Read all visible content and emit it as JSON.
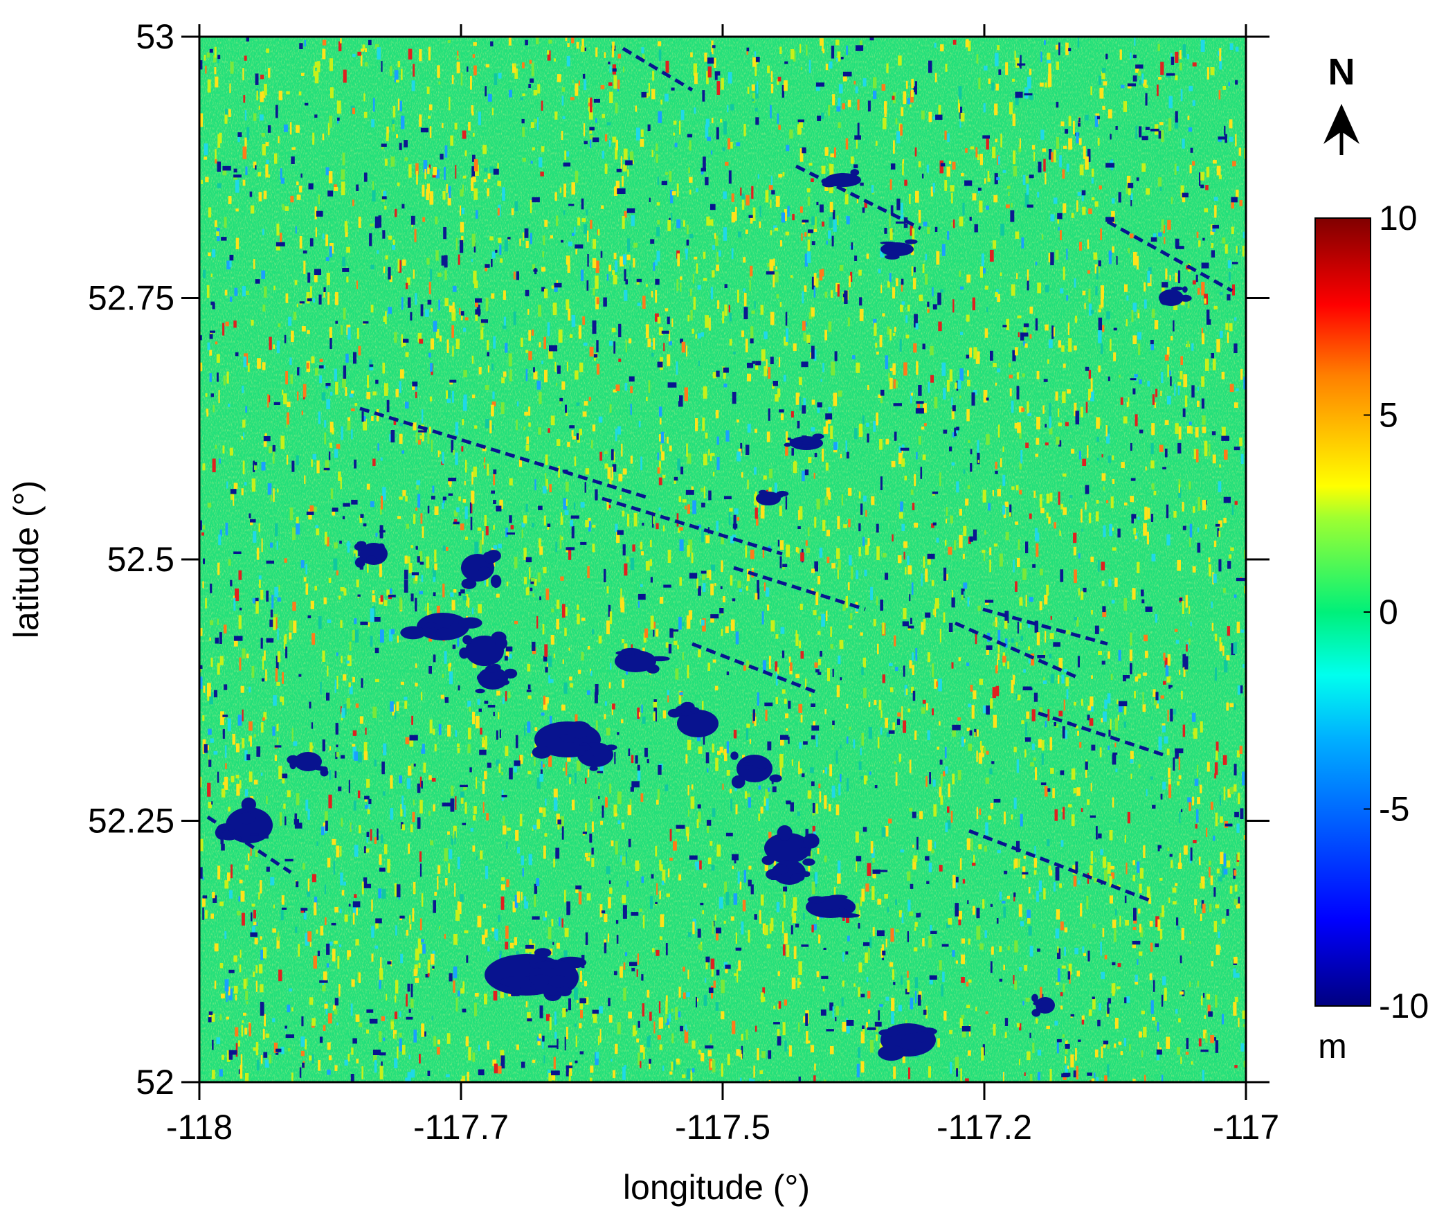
{
  "map": {
    "xlabel": "longitude (°)",
    "ylabel": "latitude (°)",
    "x_ticks": [
      "-118",
      "-117.7",
      "-117.5",
      "-117.2",
      "-117"
    ],
    "y_ticks": [
      "53",
      "52.75",
      "52.5",
      "52.25",
      "52"
    ],
    "x_range": [
      -118,
      -117
    ],
    "y_range": [
      52,
      53
    ],
    "north_arrow": {
      "label": "N",
      "icon": "north-arrow-icon"
    },
    "colorbar": {
      "ticks": [
        "10",
        "5",
        "0",
        "-5",
        "-10"
      ],
      "unit": "m",
      "range": [
        -10,
        10
      ],
      "colormap": "jet",
      "colors": [
        "#000080",
        "#0000ff",
        "#0080ff",
        "#00ffff",
        "#00ff80",
        "#80ff00",
        "#ffff00",
        "#ff8000",
        "#ff0000",
        "#800000"
      ]
    },
    "field": {
      "description_values": "height difference raster, mostly near 0 m with scattered negative depressions",
      "background_color": "#22e07a",
      "depression_color": "#08138f"
    }
  }
}
